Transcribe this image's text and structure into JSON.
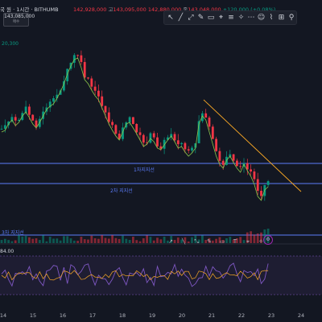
{
  "header": {
    "symbol_text": "국 원 · 1시간 · BITHUMB",
    "ohlc_prefix_o": "",
    "o_value": "142,928,000",
    "h_prefix": "고",
    "h_value": "143,095,000",
    "l_prefix": "",
    "l_value": "142,880,000",
    "c_prefix": "종",
    "c_value": "143,048,000",
    "change": "+120,000 (+0.08%)",
    "price_box": "143,085,000",
    "price_box_sub": "매수",
    "ma_label": "20,300"
  },
  "toolbar": {
    "tools": [
      "↖",
      "╱",
      "⤢",
      "✎",
      "▭",
      "⌖",
      "≡",
      "✧",
      "⋯",
      "☺",
      "⌇",
      "⊞",
      "⚲"
    ]
  },
  "levels": {
    "level1_label": "1차지지선",
    "level2_label": "2차 지지선",
    "level3_label": "3차 지지선"
  },
  "bottom_tools": [
    "↗",
    "╲",
    "⤡",
    "✎",
    "▭",
    "T",
    "⌖",
    "✧"
  ],
  "rsi": {
    "label": "84.00"
  },
  "xaxis": {
    "ticks": [
      "14",
      "15",
      "16",
      "17",
      "18",
      "19",
      "20",
      "21",
      "22",
      "23",
      "24"
    ]
  },
  "colors": {
    "background": "#131722",
    "up": "#089981",
    "down": "#f23645",
    "ma": "#8bc34a",
    "trendline": "#f9a825",
    "support": "#5b7cfa",
    "rsi": "#7e57c2"
  }
}
